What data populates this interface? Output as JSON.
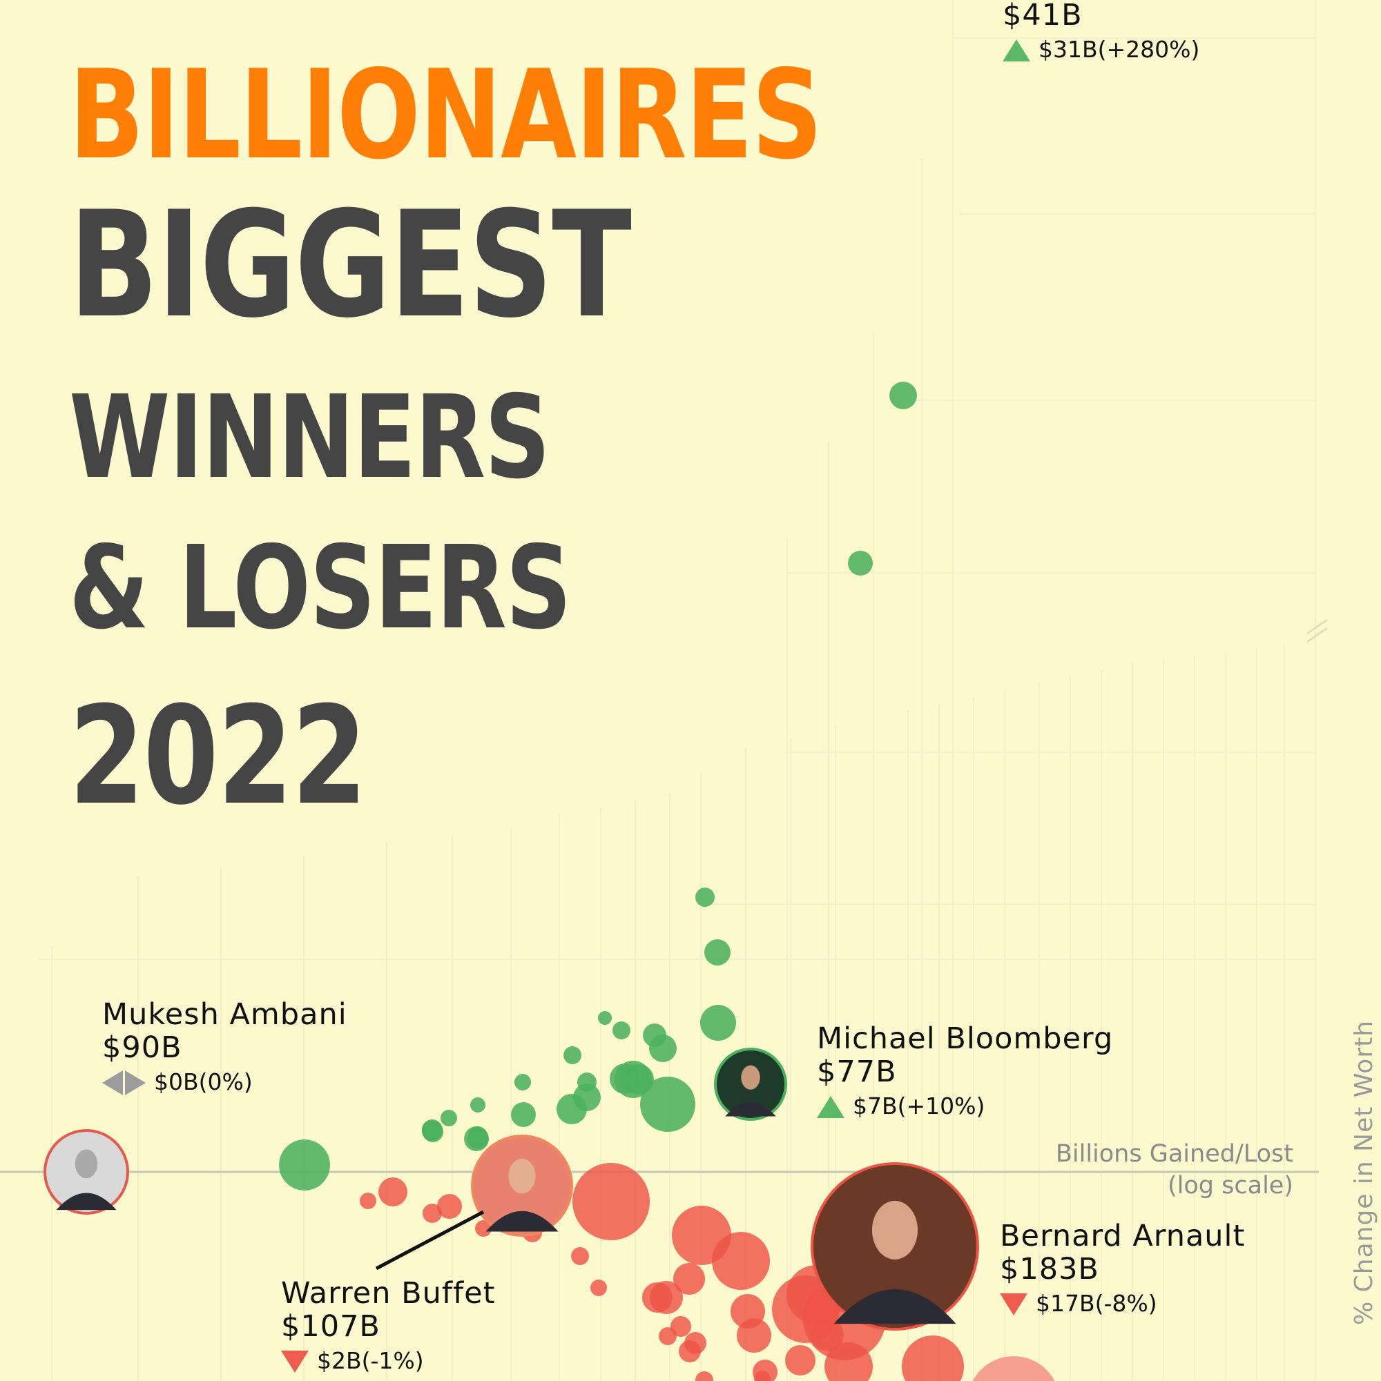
{
  "title": {
    "line1": "BILLIONAIRES",
    "line2": "BIGGEST",
    "line3": "WINNERS",
    "line4": "& LOSERS",
    "line5": "2022"
  },
  "axes": {
    "x_label_line1": "Billions Gained/Lost",
    "x_label_line2": "(log scale)",
    "y_label": "% Change in Net Worth"
  },
  "colors": {
    "background": "#fdf9cf",
    "title_accent": "#ff7f06",
    "title_dark": "#454545",
    "gain": "#4cb05e",
    "loss": "#ee5446",
    "neutral": "#9b9b9b"
  },
  "labels": {
    "top": {
      "worth": "$41B",
      "change": "$31B(+280%)"
    },
    "ambani": {
      "name": "Mukesh Ambani",
      "worth": "$90B",
      "change": "$0B(0%)"
    },
    "bloomberg": {
      "name": "Michael Bloomberg",
      "worth": "$77B",
      "change": "$7B(+10%)"
    },
    "buffet": {
      "name": "Warren Buffet",
      "worth": "$107B",
      "change": "$2B(-1%)"
    },
    "arnault": {
      "name": "Bernard Arnault",
      "worth": "$183B",
      "change": "$17B(-8%)"
    }
  },
  "chart_data": {
    "type": "scatter",
    "x_scale": "log",
    "xlabel": "Billions Gained/Lost (log scale)",
    "ylabel": "% Change in Net Worth",
    "grid": true,
    "annotated": [
      {
        "name": "Mukesh Ambani",
        "net_worth_b": 90,
        "change_b": 0,
        "change_pct": 0,
        "direction": "neutral"
      },
      {
        "name": "Michael Bloomberg",
        "net_worth_b": 77,
        "change_b": 7,
        "change_pct": 10,
        "direction": "gain"
      },
      {
        "name": "Warren Buffet",
        "net_worth_b": 107,
        "change_b": 2,
        "change_pct": -1,
        "direction": "loss"
      },
      {
        "name": "Bernard Arnault",
        "net_worth_b": 183,
        "change_b": 17,
        "change_pct": -8,
        "direction": "loss"
      },
      {
        "name": "",
        "net_worth_b": 41,
        "change_b": 31,
        "change_pct": 280,
        "direction": "gain"
      }
    ]
  }
}
